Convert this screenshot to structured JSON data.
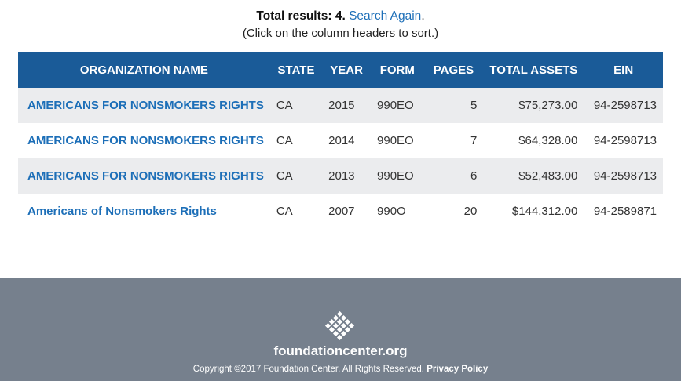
{
  "summary": {
    "label": "Total results: 4.",
    "search_again": "Search Again",
    "period": ".",
    "hint": "(Click on the column headers to sort.)"
  },
  "table": {
    "headers": [
      "ORGANIZATION NAME",
      "STATE",
      "YEAR",
      "FORM",
      "PAGES",
      "TOTAL ASSETS",
      "EIN"
    ],
    "rows": [
      {
        "org": "AMERICANS FOR NONSMOKERS RIGHTS",
        "state": "CA",
        "year": "2015",
        "form": "990EO",
        "pages": "5",
        "assets": "$75,273.00",
        "ein": "94-2598713"
      },
      {
        "org": "AMERICANS FOR NONSMOKERS RIGHTS",
        "state": "CA",
        "year": "2014",
        "form": "990EO",
        "pages": "7",
        "assets": "$64,328.00",
        "ein": "94-2598713"
      },
      {
        "org": "AMERICANS FOR NONSMOKERS RIGHTS",
        "state": "CA",
        "year": "2013",
        "form": "990EO",
        "pages": "6",
        "assets": "$52,483.00",
        "ein": "94-2598713"
      },
      {
        "org": "Americans of Nonsmokers Rights",
        "state": "CA",
        "year": "2007",
        "form": "990O",
        "pages": "20",
        "assets": "$144,312.00",
        "ein": "94-2589871"
      }
    ]
  },
  "footer": {
    "logo_icon": "diamond-dots-logo-icon",
    "site": "foundationcenter.org",
    "copyright": "Copyright ©2017 Foundation Center. All Rights Reserved.",
    "privacy": "Privacy Policy"
  },
  "colors": {
    "header_bg": "#1a5b98",
    "link": "#1d6fb8",
    "stripe": "#ebecee",
    "footer_bg": "#76808d"
  }
}
